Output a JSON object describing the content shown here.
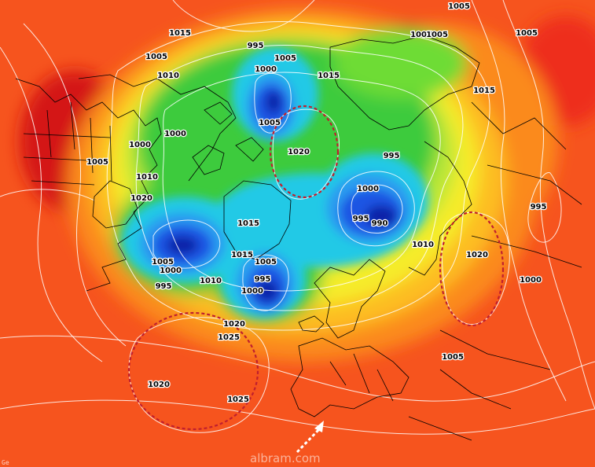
{
  "map": {
    "palette": {
      "deep_red": "#d41214",
      "red": "#ee2f1c",
      "orange_red": "#f6541e",
      "orange": "#fb8a1f",
      "yellow_orange": "#fdbd20",
      "yellow": "#f6ec2a",
      "yellow_green": "#b8e638",
      "green": "#3ccb3c",
      "light_green": "#6edc34",
      "cyan": "#22c9e6",
      "light_blue": "#2c9bf0",
      "blue": "#1f55e3",
      "dark_blue": "#0b20a8",
      "isobar": "#ffffff",
      "coast": "#000000",
      "anomaly_ring": "#c01f2e"
    },
    "pressure_labels": [
      {
        "text": "1005"
      },
      {
        "text": "1015"
      },
      {
        "text": "995"
      },
      {
        "text": "1005"
      },
      {
        "text": "1005"
      },
      {
        "text": "1005"
      },
      {
        "text": "1005"
      },
      {
        "text": "1005"
      },
      {
        "text": "1010"
      },
      {
        "text": "1015"
      },
      {
        "text": "1000"
      },
      {
        "text": "1015"
      },
      {
        "text": "1005"
      },
      {
        "text": "1000"
      },
      {
        "text": "1000"
      },
      {
        "text": "1020"
      },
      {
        "text": "1005"
      },
      {
        "text": "995"
      },
      {
        "text": "1010"
      },
      {
        "text": "1000"
      },
      {
        "text": "1020"
      },
      {
        "text": "995"
      },
      {
        "text": "990"
      },
      {
        "text": "995"
      },
      {
        "text": "1015"
      },
      {
        "text": "1010"
      },
      {
        "text": "1020"
      },
      {
        "text": "1005"
      },
      {
        "text": "1015"
      },
      {
        "text": "1005"
      },
      {
        "text": "1000"
      },
      {
        "text": "995"
      },
      {
        "text": "995"
      },
      {
        "text": "1000"
      },
      {
        "text": "1010"
      },
      {
        "text": "1000"
      },
      {
        "text": "1020"
      },
      {
        "text": "1025"
      },
      {
        "text": "1005"
      },
      {
        "text": "1020"
      },
      {
        "text": "1025"
      }
    ],
    "highlight_arrow": "pointer-arrow-icon",
    "watermark": "albram.com",
    "corner_mark": "Ge"
  }
}
